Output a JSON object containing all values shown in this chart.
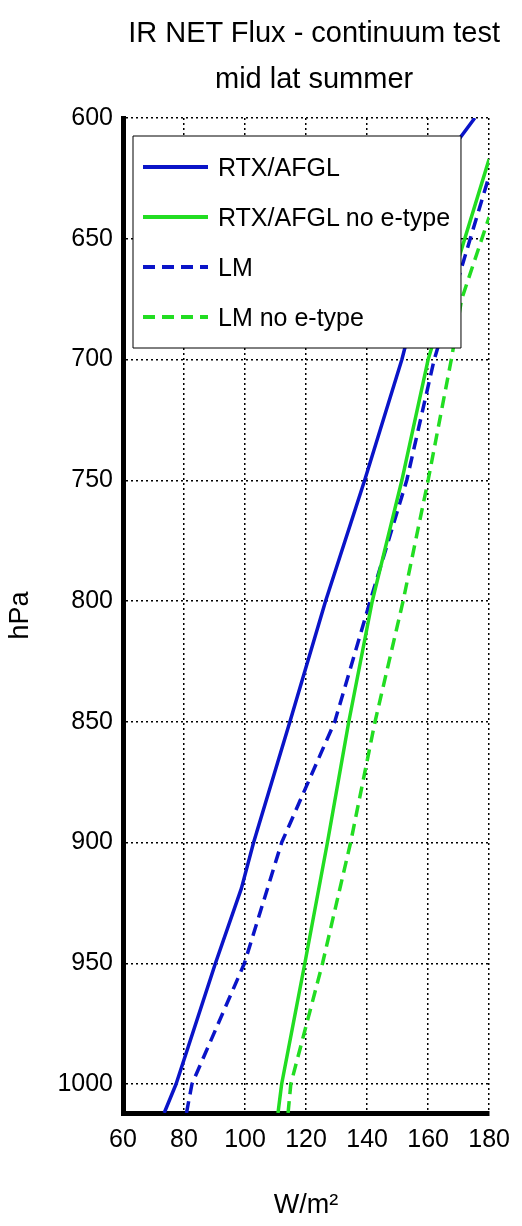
{
  "chart_data": {
    "type": "line",
    "title": "IR NET Flux - continuum test",
    "subtitle": "mid lat summer",
    "xlabel": "W/m²",
    "ylabel": "hPa",
    "xlim": [
      60,
      180
    ],
    "xticks": [
      60,
      80,
      100,
      120,
      140,
      160,
      180
    ],
    "ylim": [
      1012,
      600
    ],
    "yticks": [
      600,
      650,
      700,
      750,
      800,
      850,
      900,
      950,
      1000
    ],
    "grid": true,
    "legend": "top left",
    "marker": "none",
    "series": [
      {
        "name": "RTX/AFGL",
        "color": "#0a14c8",
        "line_style": "solid",
        "x": [
          73.5,
          77.4,
          90.3,
          98.8,
          102.8,
          114.7,
          126.4,
          139.2,
          151.4,
          170,
          175.3
        ],
        "values": [
          1012,
          1000,
          950,
          919,
          900,
          850,
          800,
          750,
          700,
          609,
          600
        ]
      },
      {
        "name": "RTX/AFGL no e-type",
        "color": "#22dd22",
        "line_style": "solid",
        "x": [
          110.8,
          112,
          119.6,
          127,
          134,
          141.7,
          151.4,
          160,
          172,
          180
        ],
        "values": [
          1012,
          1000,
          950,
          900,
          850,
          800,
          750,
          700,
          650,
          617
        ]
      },
      {
        "name": "LM",
        "color": "#0a14c8",
        "line_style": "dashed",
        "x": [
          80.8,
          82.6,
          99.8,
          112,
          129.4,
          141,
          153,
          162,
          173.8,
          180
        ],
        "values": [
          1012,
          1000,
          950,
          900,
          850,
          800,
          750,
          700,
          650,
          624
        ]
      },
      {
        "name": "LM no e-type",
        "color": "#22dd22",
        "line_style": "dashed",
        "x": [
          114.1,
          115,
          125.4,
          134.6,
          142.6,
          151.8,
          160,
          167.6,
          171,
          180
        ],
        "values": [
          1012,
          1000,
          950,
          900,
          850,
          800,
          750,
          700,
          675,
          641
        ]
      }
    ]
  }
}
